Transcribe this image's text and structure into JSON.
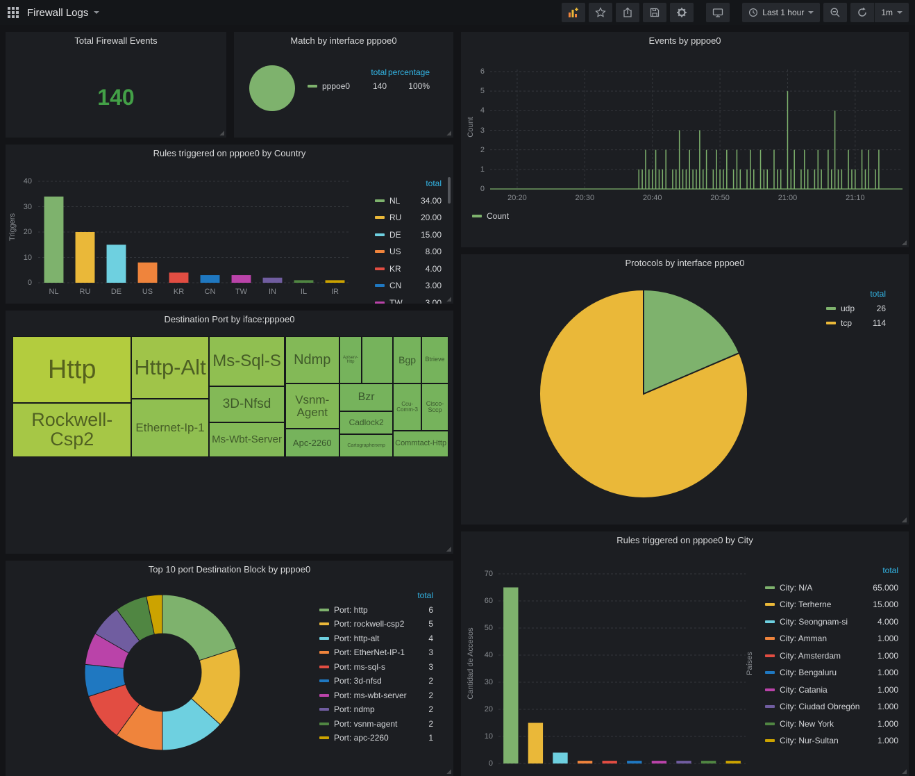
{
  "navbar": {
    "title": "Firewall Logs",
    "time_range": "Last 1 hour",
    "refresh_interval": "1m",
    "buttons": [
      "apps",
      "add-panel",
      "star",
      "share",
      "save",
      "settings",
      "tv-mode",
      "time-picker",
      "zoom-out",
      "refresh",
      "refresh-interval"
    ]
  },
  "colors": {
    "green": "#7eb26d",
    "yellow": "#eab839",
    "lightblue": "#6ed0e0",
    "orange": "#ef843c",
    "red": "#e24d42",
    "blue": "#1f78c1",
    "magenta": "#ba43a9",
    "violet": "#705da0",
    "darkgreen": "#508642",
    "darkyellow": "#cca300",
    "legend_header": "#33b5e5",
    "big_number": "#43a047",
    "panel_bg": "#1c1e22",
    "page_bg": "#131417"
  },
  "panels": {
    "total_events": {
      "title": "Total Firewall Events",
      "value": "140"
    },
    "match_interface": {
      "title": "Match by interface pppoe0",
      "legend_headers": [
        "total",
        "percentage"
      ],
      "legend": [
        {
          "color": "#7eb26d",
          "label": "pppoe0",
          "values": [
            "140",
            "100%"
          ]
        }
      ]
    },
    "events": {
      "title": "Events by pppoe0",
      "ylabel": "Count",
      "legend": [
        {
          "color": "#7eb26d",
          "label": "Count",
          "values": []
        }
      ]
    },
    "country": {
      "title": "Rules triggered on pppoe0 by Country",
      "ylabel": "Triggers",
      "legend_headers": [
        "total"
      ],
      "legend": [
        {
          "color": "#7eb26d",
          "label": "NL",
          "values": [
            "34.00"
          ]
        },
        {
          "color": "#eab839",
          "label": "RU",
          "values": [
            "20.00"
          ]
        },
        {
          "color": "#6ed0e0",
          "label": "DE",
          "values": [
            "15.00"
          ]
        },
        {
          "color": "#ef843c",
          "label": "US",
          "values": [
            "8.00"
          ]
        },
        {
          "color": "#e24d42",
          "label": "KR",
          "values": [
            "4.00"
          ]
        },
        {
          "color": "#1f78c1",
          "label": "CN",
          "values": [
            "3.00"
          ]
        },
        {
          "color": "#ba43a9",
          "label": "TW",
          "values": [
            "3.00"
          ]
        }
      ]
    },
    "dest_ports": {
      "title": "Destination Port by iface:pppoe0"
    },
    "protocols": {
      "title": "Protocols by interface pppoe0",
      "legend_headers": [
        "total"
      ],
      "legend": [
        {
          "color": "#7eb26d",
          "label": "udp",
          "values": [
            "26"
          ]
        },
        {
          "color": "#eab839",
          "label": "tcp",
          "values": [
            "114"
          ]
        }
      ]
    },
    "top_ports": {
      "title": "Top 10 port Destination Block by pppoe0",
      "legend_headers": [
        "total"
      ],
      "legend": [
        {
          "color": "#7eb26d",
          "label": "Port: http",
          "values": [
            "6"
          ]
        },
        {
          "color": "#eab839",
          "label": "Port: rockwell-csp2",
          "values": [
            "5"
          ]
        },
        {
          "color": "#6ed0e0",
          "label": "Port: http-alt",
          "values": [
            "4"
          ]
        },
        {
          "color": "#ef843c",
          "label": "Port: EtherNet-IP-1",
          "values": [
            "3"
          ]
        },
        {
          "color": "#e24d42",
          "label": "Port: ms-sql-s",
          "values": [
            "3"
          ]
        },
        {
          "color": "#1f78c1",
          "label": "Port: 3d-nfsd",
          "values": [
            "2"
          ]
        },
        {
          "color": "#ba43a9",
          "label": "Port: ms-wbt-server",
          "values": [
            "2"
          ]
        },
        {
          "color": "#705da0",
          "label": "Port: ndmp",
          "values": [
            "2"
          ]
        },
        {
          "color": "#508642",
          "label": "Port: vsnm-agent",
          "values": [
            "2"
          ]
        },
        {
          "color": "#cca300",
          "label": "Port: apc-2260",
          "values": [
            "1"
          ]
        }
      ]
    },
    "city": {
      "title": "Rules triggered on pppoe0 by City",
      "ylabel": "Cantidad de Accesos",
      "ylabel_right": "Países",
      "legend_headers": [
        "total"
      ],
      "legend": [
        {
          "color": "#7eb26d",
          "label": "City: N/A",
          "values": [
            "65.000"
          ]
        },
        {
          "color": "#eab839",
          "label": "City: Terherne",
          "values": [
            "15.000"
          ]
        },
        {
          "color": "#6ed0e0",
          "label": "City: Seongnam-si",
          "values": [
            "4.000"
          ]
        },
        {
          "color": "#ef843c",
          "label": "City: Amman",
          "values": [
            "1.000"
          ]
        },
        {
          "color": "#e24d42",
          "label": "City: Amsterdam",
          "values": [
            "1.000"
          ]
        },
        {
          "color": "#1f78c1",
          "label": "City: Bengaluru",
          "values": [
            "1.000"
          ]
        },
        {
          "color": "#ba43a9",
          "label": "City: Catania",
          "values": [
            "1.000"
          ]
        },
        {
          "color": "#705da0",
          "label": "City: Ciudad Obregón",
          "values": [
            "1.000"
          ]
        },
        {
          "color": "#508642",
          "label": "City: New York",
          "values": [
            "1.000"
          ]
        },
        {
          "color": "#cca300",
          "label": "City: Nur-Sultan",
          "values": [
            "1.000"
          ]
        }
      ]
    }
  },
  "chart_data": [
    {
      "id": "events",
      "type": "bar",
      "title": "Events by pppoe0",
      "series_name": "Count",
      "ylabel": "Count",
      "ylim": [
        0,
        6
      ],
      "y_ticks": [
        0,
        1,
        2,
        3,
        4,
        5,
        6
      ],
      "x_min": "20:16",
      "x_max": "21:17",
      "x_ticks": [
        "20:20",
        "20:30",
        "20:40",
        "20:50",
        "21:00",
        "21:10"
      ],
      "color": "#7eb26d",
      "grid": true,
      "legend_position": "bottom-left",
      "points": [
        [
          "20:38:00",
          1
        ],
        [
          "20:38:30",
          1
        ],
        [
          "20:39:00",
          2
        ],
        [
          "20:39:30",
          1
        ],
        [
          "20:40:00",
          1
        ],
        [
          "20:40:30",
          2
        ],
        [
          "20:41:00",
          1
        ],
        [
          "20:41:30",
          1
        ],
        [
          "20:42:00",
          2
        ],
        [
          "20:43:00",
          1
        ],
        [
          "20:43:30",
          1
        ],
        [
          "20:44:00",
          3
        ],
        [
          "20:44:30",
          1
        ],
        [
          "20:45:00",
          1
        ],
        [
          "20:45:30",
          2
        ],
        [
          "20:46:00",
          1
        ],
        [
          "20:46:30",
          1
        ],
        [
          "20:47:00",
          3
        ],
        [
          "20:47:30",
          1
        ],
        [
          "20:48:00",
          2
        ],
        [
          "20:49:00",
          1
        ],
        [
          "20:49:30",
          2
        ],
        [
          "20:50:00",
          1
        ],
        [
          "20:50:30",
          1
        ],
        [
          "20:51:00",
          2
        ],
        [
          "20:52:00",
          1
        ],
        [
          "20:52:30",
          2
        ],
        [
          "20:53:00",
          1
        ],
        [
          "20:54:00",
          1
        ],
        [
          "20:54:30",
          2
        ],
        [
          "20:55:00",
          1
        ],
        [
          "20:56:00",
          2
        ],
        [
          "20:56:30",
          1
        ],
        [
          "20:57:00",
          1
        ],
        [
          "20:58:00",
          2
        ],
        [
          "20:58:30",
          1
        ],
        [
          "20:59:00",
          1
        ],
        [
          "21:00:00",
          5
        ],
        [
          "21:00:30",
          1
        ],
        [
          "21:01:00",
          2
        ],
        [
          "21:02:00",
          1
        ],
        [
          "21:02:30",
          2
        ],
        [
          "21:03:00",
          1
        ],
        [
          "21:04:00",
          1
        ],
        [
          "21:04:30",
          2
        ],
        [
          "21:05:00",
          1
        ],
        [
          "21:06:00",
          2
        ],
        [
          "21:06:30",
          1
        ],
        [
          "21:07:00",
          4
        ],
        [
          "21:07:30",
          1
        ],
        [
          "21:08:00",
          1
        ],
        [
          "21:09:00",
          2
        ],
        [
          "21:09:30",
          1
        ],
        [
          "21:10:00",
          1
        ],
        [
          "21:11:00",
          2
        ],
        [
          "21:11:30",
          1
        ],
        [
          "21:12:00",
          2
        ],
        [
          "21:13:00",
          1
        ],
        [
          "21:13:30",
          2
        ]
      ]
    },
    {
      "id": "country",
      "type": "bar",
      "title": "Rules triggered on pppoe0 by Country",
      "ylabel": "Triggers",
      "ylim": [
        0,
        40
      ],
      "y_ticks": [
        0,
        10,
        20,
        30,
        40
      ],
      "grid": true,
      "categories": [
        "NL",
        "RU",
        "DE",
        "US",
        "KR",
        "CN",
        "TW",
        "IN",
        "IL",
        "IR"
      ],
      "values": [
        34,
        20,
        15,
        8,
        4,
        3,
        3,
        2,
        1,
        1
      ],
      "colors": [
        "#7eb26d",
        "#eab839",
        "#6ed0e0",
        "#ef843c",
        "#e24d42",
        "#1f78c1",
        "#ba43a9",
        "#705da0",
        "#508642",
        "#cca300"
      ],
      "legend_position": "right"
    },
    {
      "id": "destports",
      "type": "treemap",
      "title": "Destination Port by iface:pppoe0",
      "tiles": [
        {
          "label": "Http",
          "value": 6,
          "x": 0,
          "y": 0,
          "w": 27.3,
          "h": 55.2,
          "color": "#b3cc3e",
          "fs": 38
        },
        {
          "label": "Rockwell-Csp2",
          "value": 5,
          "x": 0,
          "y": 55.2,
          "w": 27.3,
          "h": 44.8,
          "color": "#a6c746",
          "fs": 27
        },
        {
          "label": "Http-Alt",
          "value": 4,
          "x": 27.3,
          "y": 0,
          "w": 17.7,
          "h": 51.7,
          "color": "#a0c449",
          "fs": 31
        },
        {
          "label": "Ethernet-Ip-1",
          "value": 3,
          "x": 27.3,
          "y": 51.7,
          "w": 17.7,
          "h": 48.3,
          "color": "#90bf51",
          "fs": 17
        },
        {
          "label": "Ms-Sql-S",
          "value": 3,
          "x": 45,
          "y": 0,
          "w": 17.5,
          "h": 41.4,
          "color": "#90bf51",
          "fs": 24
        },
        {
          "label": "3D-Nfsd",
          "value": 2,
          "x": 45,
          "y": 41.4,
          "w": 17.5,
          "h": 29.9,
          "color": "#83b957",
          "fs": 19
        },
        {
          "label": "Ms-Wbt-Server",
          "value": 2,
          "x": 45,
          "y": 71.3,
          "w": 17.5,
          "h": 28.7,
          "color": "#83b957",
          "fs": 15
        },
        {
          "label": "Ndmp",
          "value": 2,
          "x": 62.5,
          "y": 0,
          "w": 12.5,
          "h": 39.1,
          "color": "#83b957",
          "fs": 20
        },
        {
          "label": "Vsnm-Agent",
          "value": 2,
          "x": 62.5,
          "y": 39.1,
          "w": 12.5,
          "h": 37.4,
          "color": "#83b957",
          "fs": 17
        },
        {
          "label": "Apc-2260",
          "value": 1,
          "x": 62.5,
          "y": 76.5,
          "w": 12.5,
          "h": 23.5,
          "color": "#76b35c",
          "fs": 13
        },
        {
          "label": "Apiserv-Http",
          "value": 1,
          "x": 75,
          "y": 0,
          "w": 5.1,
          "h": 39.1,
          "color": "#76b35c",
          "fs": 6
        },
        {
          "label": "",
          "value": 1,
          "x": 80.1,
          "y": 0,
          "w": 7.2,
          "h": 39.1,
          "color": "#76b35c",
          "fs": 10
        },
        {
          "label": "Bgp",
          "value": 1,
          "x": 87.3,
          "y": 0,
          "w": 6.5,
          "h": 39.1,
          "color": "#76b35c",
          "fs": 14
        },
        {
          "label": "Btrieve",
          "value": 1,
          "x": 93.8,
          "y": 0,
          "w": 6.2,
          "h": 39.1,
          "color": "#76b35c",
          "fs": 9
        },
        {
          "label": "Bzr",
          "value": 1,
          "x": 75,
          "y": 39.1,
          "w": 12.3,
          "h": 23,
          "color": "#76b35c",
          "fs": 16
        },
        {
          "label": "Ccu-Comm-3",
          "value": 1,
          "x": 87.3,
          "y": 39.1,
          "w": 6.5,
          "h": 39.1,
          "color": "#76b35c",
          "fs": 8
        },
        {
          "label": "Cisco-Sccp",
          "value": 1,
          "x": 93.8,
          "y": 39.1,
          "w": 6.2,
          "h": 39.1,
          "color": "#76b35c",
          "fs": 9
        },
        {
          "label": "Cadlock2",
          "value": 1,
          "x": 75,
          "y": 62.1,
          "w": 12.3,
          "h": 19,
          "color": "#76b35c",
          "fs": 12
        },
        {
          "label": "Cartographerxmp",
          "value": 1,
          "x": 75,
          "y": 81.1,
          "w": 12.3,
          "h": 18.9,
          "color": "#76b35c",
          "fs": 7
        },
        {
          "label": "Commtact-Http",
          "value": 1,
          "x": 87.3,
          "y": 78.2,
          "w": 12.7,
          "h": 21.8,
          "color": "#76b35c",
          "fs": 11
        }
      ]
    },
    {
      "id": "protocols",
      "type": "pie",
      "title": "Protocols by interface pppoe0",
      "legend_position": "top-right",
      "slices": [
        {
          "label": "udp",
          "value": 26,
          "color": "#7eb26d"
        },
        {
          "label": "tcp",
          "value": 114,
          "color": "#eab839"
        }
      ]
    },
    {
      "id": "top10ports",
      "type": "donut",
      "title": "Top 10 port Destination Block by pppoe0",
      "legend_position": "right",
      "slices": [
        {
          "label": "Port: http",
          "value": 6,
          "color": "#7eb26d"
        },
        {
          "label": "Port: rockwell-csp2",
          "value": 5,
          "color": "#eab839"
        },
        {
          "label": "Port: http-alt",
          "value": 4,
          "color": "#6ed0e0"
        },
        {
          "label": "Port: EtherNet-IP-1",
          "value": 3,
          "color": "#ef843c"
        },
        {
          "label": "Port: ms-sql-s",
          "value": 3,
          "color": "#e24d42"
        },
        {
          "label": "Port: 3d-nfsd",
          "value": 2,
          "color": "#1f78c1"
        },
        {
          "label": "Port: ms-wbt-server",
          "value": 2,
          "color": "#ba43a9"
        },
        {
          "label": "Port: ndmp",
          "value": 2,
          "color": "#705da0"
        },
        {
          "label": "Port: vsnm-agent",
          "value": 2,
          "color": "#508642"
        },
        {
          "label": "Port: apc-2260",
          "value": 1,
          "color": "#cca300"
        }
      ]
    },
    {
      "id": "city",
      "type": "bar",
      "title": "Rules triggered on pppoe0 by City",
      "ylabel": "Cantidad de Accesos",
      "ylabel_right": "Países",
      "ylim": [
        0,
        70
      ],
      "y_ticks": [
        0,
        10,
        20,
        30,
        40,
        50,
        60,
        70
      ],
      "grid": true,
      "categories": [
        "N/A",
        "Terherne",
        "Seongnam-si",
        "Amman",
        "Amsterdam",
        "Bengaluru",
        "Catania",
        "Ciudad Obregón",
        "New York",
        "Nur-Sultan"
      ],
      "values": [
        65,
        15,
        4,
        1,
        1,
        1,
        1,
        1,
        1,
        1
      ],
      "colors": [
        "#7eb26d",
        "#eab839",
        "#6ed0e0",
        "#ef843c",
        "#e24d42",
        "#1f78c1",
        "#ba43a9",
        "#705da0",
        "#508642",
        "#cca300"
      ],
      "legend_position": "right"
    }
  ]
}
